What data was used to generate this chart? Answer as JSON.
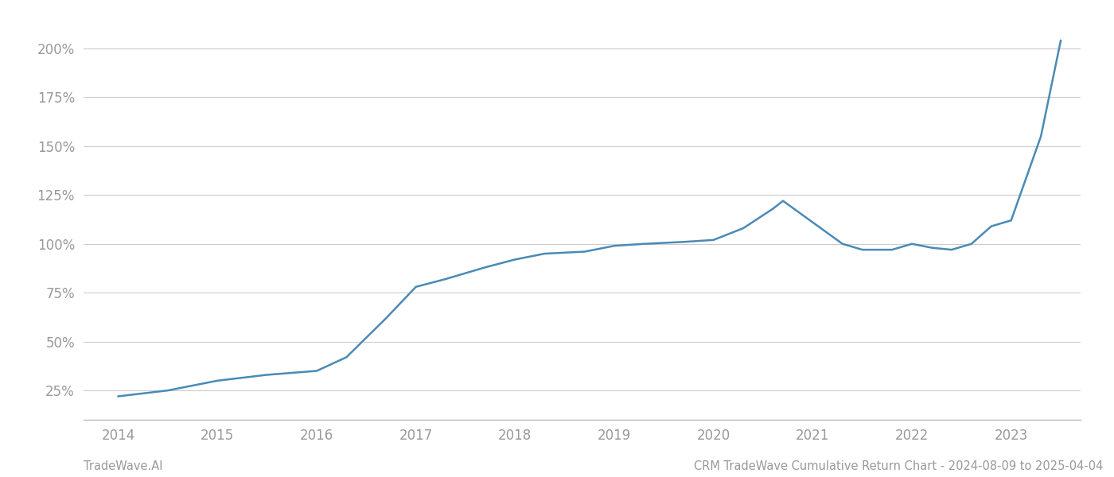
{
  "x_years": [
    2014.0,
    2014.5,
    2015.0,
    2015.5,
    2016.0,
    2016.3,
    2016.7,
    2017.0,
    2017.3,
    2017.7,
    2018.0,
    2018.3,
    2018.7,
    2019.0,
    2019.3,
    2019.7,
    2020.0,
    2020.3,
    2020.6,
    2020.7,
    2021.0,
    2021.3,
    2021.5,
    2021.8,
    2022.0,
    2022.2,
    2022.4,
    2022.6,
    2022.8,
    2023.0,
    2023.3,
    2023.5
  ],
  "y_values": [
    22,
    25,
    30,
    33,
    35,
    42,
    62,
    78,
    82,
    88,
    92,
    95,
    96,
    99,
    100,
    101,
    102,
    108,
    118,
    122,
    111,
    100,
    97,
    97,
    100,
    98,
    97,
    100,
    109,
    112,
    155,
    204
  ],
  "line_color": "#4a8ab5",
  "background_color": "#ffffff",
  "grid_color": "#cccccc",
  "tick_color": "#999999",
  "yticks": [
    25,
    50,
    75,
    100,
    125,
    150,
    175,
    200
  ],
  "xticks": [
    2014,
    2015,
    2016,
    2017,
    2018,
    2019,
    2020,
    2021,
    2022,
    2023
  ],
  "ylim": [
    10,
    215
  ],
  "xlim": [
    2013.65,
    2023.7
  ],
  "footer_left": "TradeWave.AI",
  "footer_right": "CRM TradeWave Cumulative Return Chart - 2024-08-09 to 2025-04-04",
  "line_width": 1.8
}
